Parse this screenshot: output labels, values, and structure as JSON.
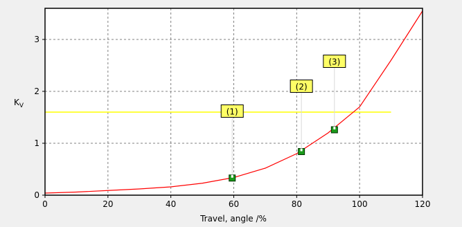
{
  "chart_data": {
    "type": "line",
    "title": "",
    "xlabel": "Travel, angle /%",
    "ylabel": "Kv",
    "ylabel_main": "K",
    "ylabel_sub": "V",
    "xlim": [
      0,
      120
    ],
    "ylim": [
      0,
      3.6
    ],
    "x_ticks": [
      0,
      20,
      40,
      60,
      80,
      100,
      120
    ],
    "y_ticks": [
      0,
      1,
      2,
      3
    ],
    "grid": true,
    "series": [
      {
        "name": "",
        "color": "#ff0000",
        "x": [
          0,
          10,
          20,
          30,
          40,
          50,
          60,
          70,
          80,
          90,
          100,
          110,
          120
        ],
        "y": [
          0.04,
          0.06,
          0.09,
          0.12,
          0.16,
          0.23,
          0.34,
          0.52,
          0.8,
          1.2,
          1.7,
          2.6,
          3.55
        ]
      }
    ],
    "reference_line": {
      "y": 1.6,
      "x_start": 0,
      "x_end": 110,
      "color": "#ffff00"
    },
    "markers": [
      {
        "label": "(1)",
        "x": 59.5,
        "y": 0.33,
        "label_y": 1.62
      },
      {
        "label": "(2)",
        "x": 81.5,
        "y": 0.84,
        "label_y": 2.1
      },
      {
        "label": "(3)",
        "x": 92,
        "y": 1.26,
        "label_y": 2.58
      }
    ],
    "colors": {
      "background": "#f0f0f0",
      "plot_area": "#ffffff",
      "grid": "#808080",
      "marker_fill": "#1a9a1a",
      "label_fill": "#ffff66"
    }
  }
}
